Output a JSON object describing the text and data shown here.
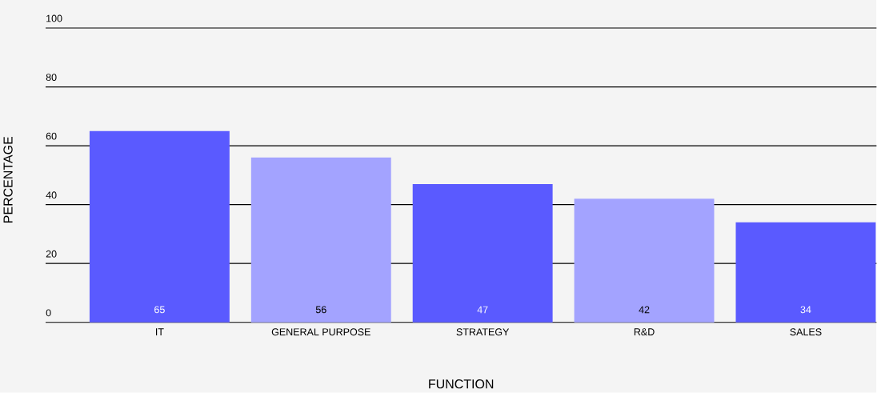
{
  "chart_data": {
    "type": "bar",
    "xlabel": "FUNCTION",
    "ylabel": "PERCENTAGE",
    "categories": [
      "IT",
      "GENERAL PURPOSE",
      "STRATEGY",
      "R&D",
      "SALES"
    ],
    "values": [
      65,
      56,
      47,
      42,
      34
    ],
    "colors": [
      "#5a5aff",
      "#a3a3ff",
      "#5a5aff",
      "#a3a3ff",
      "#5a5aff"
    ],
    "ylim": [
      0,
      100
    ],
    "yticks": [
      0,
      20,
      40,
      60,
      80,
      100
    ],
    "grid": "y",
    "data_labels": true
  }
}
